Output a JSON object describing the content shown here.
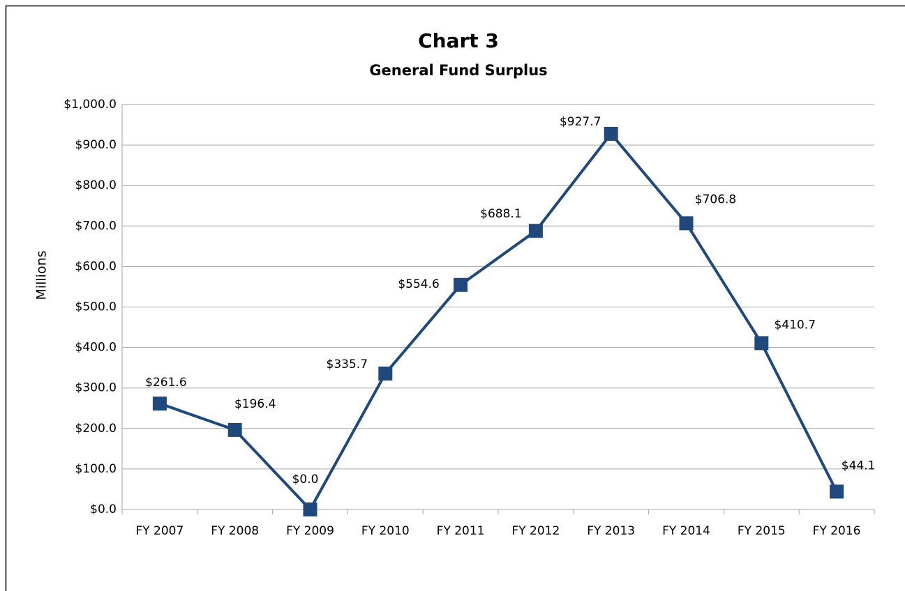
{
  "chart_data": {
    "type": "line",
    "title": "Chart 3",
    "subtitle": "General Fund Surplus",
    "y_label": "Millions",
    "categories": [
      "FY 2007",
      "FY 2008",
      "FY 2009",
      "FY 2010",
      "FY 2011",
      "FY 2012",
      "FY 2013",
      "FY 2014",
      "FY 2015",
      "FY 2016"
    ],
    "series": [
      {
        "name": "General Fund Surplus",
        "color": "#1f497d",
        "values": [
          261.6,
          196.4,
          0.0,
          335.7,
          554.6,
          688.1,
          927.7,
          706.8,
          410.7,
          44.1
        ],
        "value_labels": [
          "$261.6",
          "$196.4",
          "$0.0",
          "$335.7",
          "$554.6",
          "$688.1",
          "$927.7",
          "$706.8",
          "$410.7",
          "$44.1"
        ]
      }
    ],
    "ylim": [
      0,
      1000
    ],
    "yticks": [
      {
        "value": 0,
        "label": "$0.0"
      },
      {
        "value": 100,
        "label": "$100.0"
      },
      {
        "value": 200,
        "label": "$200.0"
      },
      {
        "value": 300,
        "label": "$300.0"
      },
      {
        "value": 400,
        "label": "$400.0"
      },
      {
        "value": 500,
        "label": "$500.0"
      },
      {
        "value": 600,
        "label": "$600.0"
      },
      {
        "value": 700,
        "label": "$700.0"
      },
      {
        "value": 800,
        "label": "$800.0"
      },
      {
        "value": 900,
        "label": "$900.0"
      },
      {
        "value": 1000,
        "label": "$1,000.0"
      }
    ],
    "grid": true
  }
}
